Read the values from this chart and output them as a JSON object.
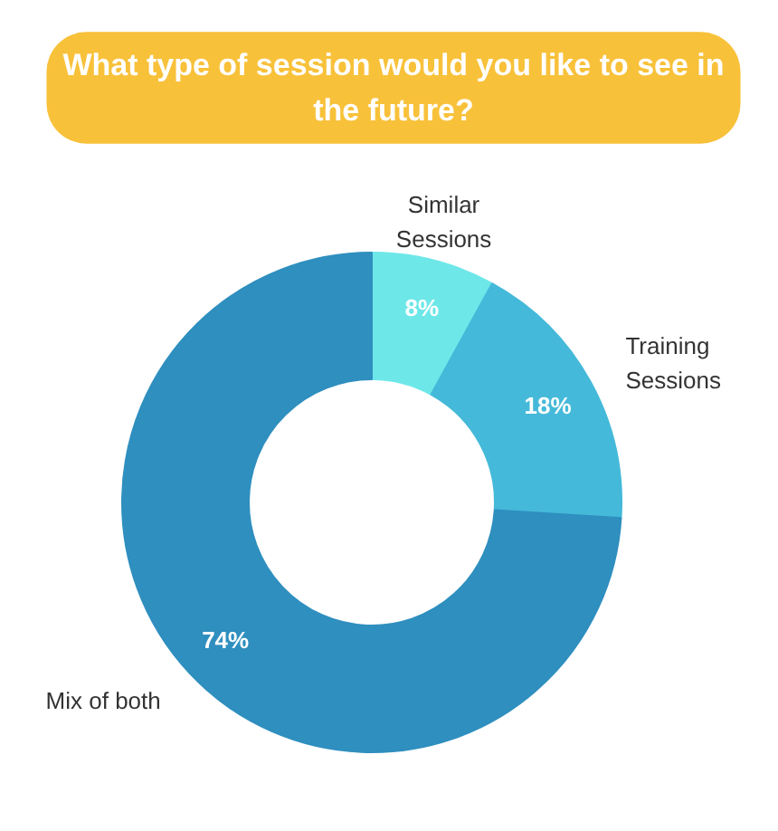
{
  "chart_data": {
    "type": "donut",
    "title": "What type of session would you like to see in the future?",
    "categories": [
      "Similar Sessions",
      "Training Sessions",
      "Mix of both"
    ],
    "values": [
      8,
      18,
      74
    ],
    "colors": [
      "#6ee7e9",
      "#45b9d9",
      "#2f8fbf"
    ],
    "value_labels": [
      "8%",
      "18%",
      "74%"
    ]
  }
}
